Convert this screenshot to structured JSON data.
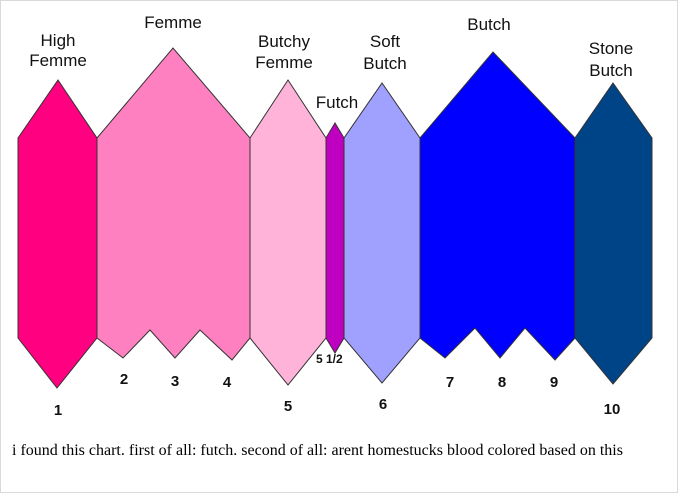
{
  "diagram": {
    "categories": [
      {
        "id": "high-femme",
        "label_lines": [
          "High",
          "Femme"
        ],
        "number": "1",
        "color": "#ff0080"
      },
      {
        "id": "femme",
        "label_lines": [
          "Femme"
        ],
        "numbers": [
          "2",
          "3",
          "4"
        ],
        "color": "#ff80c0"
      },
      {
        "id": "butchy-femme",
        "label_lines": [
          "Butchy",
          "Femme"
        ],
        "number": "5",
        "color": "#ffb3d9"
      },
      {
        "id": "futch",
        "label_lines": [
          "Futch"
        ],
        "number": "5 1/2",
        "color": "#c000c0"
      },
      {
        "id": "soft-butch",
        "label_lines": [
          "Soft",
          "Butch"
        ],
        "number": "6",
        "color": "#a0a0ff"
      },
      {
        "id": "butch",
        "label_lines": [
          "Butch"
        ],
        "numbers": [
          "7",
          "8",
          "9"
        ],
        "color": "#0000ff"
      },
      {
        "id": "stone-butch",
        "label_lines": [
          "Stone",
          "Butch"
        ],
        "number": "10",
        "color": "#004488"
      }
    ]
  },
  "caption": "i found this chart. first of all: futch. second of all: arent homestucks blood colored based on this"
}
